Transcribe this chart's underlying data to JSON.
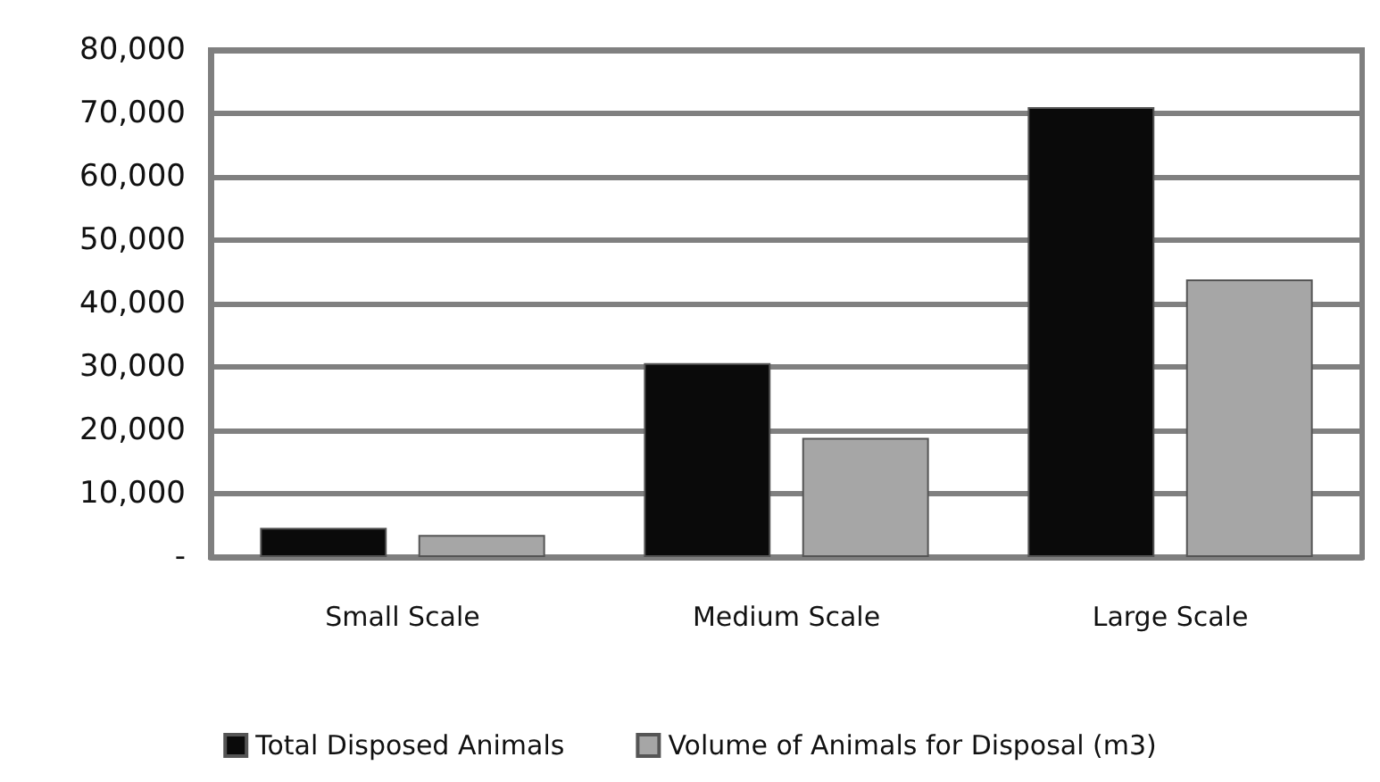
{
  "chart_data": {
    "type": "bar",
    "categories": [
      "Small Scale",
      "Medium Scale",
      "Large Scale"
    ],
    "series": [
      {
        "name": "Total Disposed Animals",
        "color": "#0a0a0a",
        "values": [
          4600,
          30600,
          71000
        ]
      },
      {
        "name": "Volume of Animals for Disposal (m3)",
        "color": "#a6a6a6",
        "values": [
          3500,
          18800,
          43800
        ]
      }
    ],
    "ylim": [
      0,
      80000
    ],
    "yticks": [
      {
        "value": 0,
        "label": "-"
      },
      {
        "value": 10000,
        "label": "10,000"
      },
      {
        "value": 20000,
        "label": "20,000"
      },
      {
        "value": 30000,
        "label": "30,000"
      },
      {
        "value": 40000,
        "label": "40,000"
      },
      {
        "value": 50000,
        "label": "50,000"
      },
      {
        "value": 60000,
        "label": "60,000"
      },
      {
        "value": 70000,
        "label": "70,000"
      },
      {
        "value": 80000,
        "label": "80,000"
      }
    ],
    "grid": true,
    "legend": "bottom"
  }
}
